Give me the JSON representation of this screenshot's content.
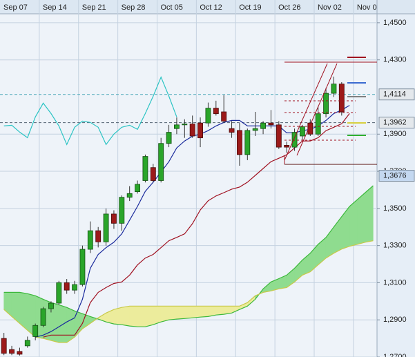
{
  "chart_data": {
    "type": "candlestick",
    "categories": [
      "Sep 07",
      null,
      null,
      null,
      null,
      "Sep 14",
      null,
      null,
      null,
      null,
      "Sep 21",
      null,
      null,
      null,
      null,
      "Sep 28",
      null,
      null,
      null,
      null,
      "Oct 05",
      null,
      null,
      null,
      null,
      "Oct 12",
      null,
      null,
      null,
      null,
      "Oct 19",
      null,
      null,
      null,
      null,
      "Oct 26",
      null,
      null,
      null,
      null,
      "Nov 02",
      null,
      null,
      null,
      null,
      "Nov 0",
      null,
      null
    ],
    "open": [
      1.28,
      1.274,
      1.273,
      1.276,
      1.281,
      1.287,
      1.296,
      1.299,
      1.31,
      1.306,
      1.309,
      1.328,
      1.338,
      1.332,
      1.347,
      1.342,
      1.356,
      1.359,
      1.365,
      1.372,
      1.365,
      1.385,
      1.393,
      1.395,
      1.3955,
      1.396,
      1.396,
      1.404,
      1.402,
      1.393,
      1.392,
      1.379,
      1.392,
      1.393,
      1.396,
      1.395,
      1.384,
      1.383,
      1.389,
      1.396,
      1.39,
      1.401,
      1.412,
      1.417,
      null,
      null,
      null,
      null
    ],
    "high": [
      1.283,
      1.276,
      1.275,
      1.281,
      1.288,
      1.297,
      1.3,
      1.311,
      1.312,
      1.311,
      1.33,
      1.343,
      1.34,
      1.35,
      1.349,
      1.357,
      1.362,
      1.365,
      1.379,
      1.374,
      1.388,
      1.395,
      1.399,
      1.398,
      1.4,
      1.399,
      1.407,
      1.408,
      1.411,
      1.397,
      1.396,
      1.393,
      1.402,
      1.397,
      1.403,
      1.397,
      1.386,
      1.393,
      1.395,
      1.398,
      1.405,
      1.415,
      1.421,
      1.418,
      null,
      null,
      null,
      null
    ],
    "low": [
      1.271,
      1.271,
      1.2708,
      1.275,
      1.279,
      1.286,
      1.294,
      1.298,
      1.304,
      1.304,
      1.308,
      1.326,
      1.329,
      1.33,
      1.339,
      1.338,
      1.354,
      1.358,
      1.364,
      1.364,
      1.364,
      1.383,
      1.39,
      1.388,
      1.388,
      1.383,
      1.394,
      1.4,
      1.396,
      1.388,
      1.373,
      1.376,
      1.389,
      1.39,
      1.393,
      1.382,
      1.38,
      1.381,
      1.387,
      1.389,
      1.389,
      1.399,
      1.41,
      1.4,
      null,
      null,
      null,
      null
    ],
    "close": [
      1.272,
      1.272,
      1.2715,
      1.279,
      1.287,
      1.296,
      1.299,
      1.31,
      1.306,
      1.309,
      1.328,
      1.338,
      1.332,
      1.347,
      1.342,
      1.356,
      1.358,
      1.363,
      1.378,
      1.365,
      1.385,
      1.391,
      1.395,
      1.3955,
      1.389,
      1.388,
      1.404,
      1.401,
      1.397,
      1.391,
      1.379,
      1.392,
      1.393,
      1.396,
      1.395,
      1.383,
      1.383,
      1.391,
      1.394,
      1.39,
      1.401,
      1.412,
      1.417,
      1.402,
      null,
      null,
      null,
      null
    ],
    "up_color": "#2aa52a",
    "down_color": "#9c1a1a",
    "ylim": [
      1.27,
      1.4548
    ],
    "yticks": [
      {
        "value": 1.45,
        "label": "1,4500"
      },
      {
        "value": 1.43,
        "label": "1,4300"
      },
      {
        "value": 1.39,
        "label": "1,3900"
      },
      {
        "value": 1.37,
        "label": "1,3700"
      },
      {
        "value": 1.35,
        "label": "1,3500"
      },
      {
        "value": 1.33,
        "label": "1,3300"
      },
      {
        "value": 1.31,
        "label": "1,3100"
      },
      {
        "value": 1.29,
        "label": "1,2900"
      },
      {
        "value": 1.27,
        "label": "1,2700"
      }
    ],
    "grid": true,
    "cloud": {
      "span_a": {
        "color": "#3cb83c",
        "values": [
          1.3048,
          1.3048,
          1.3048,
          1.3041,
          1.303,
          1.3011,
          1.2993,
          1.2981,
          1.2967,
          1.2948,
          1.2933,
          1.2918,
          1.2904,
          1.2889,
          1.2878,
          1.2874,
          1.2867,
          1.2863,
          1.2863,
          1.2874,
          1.2889,
          1.29,
          1.2904,
          1.2907,
          1.2911,
          1.2915,
          1.2918,
          1.2926,
          1.293,
          1.2937,
          1.2956,
          1.2974,
          1.3011,
          1.3067,
          1.3104,
          1.3122,
          1.3141,
          1.3178,
          1.3222,
          1.3259,
          1.3307,
          1.3344,
          1.34,
          1.3456,
          1.3511,
          1.3548,
          1.3585,
          1.3622
        ]
      },
      "span_b": {
        "color": "#c9c94a",
        "values": [
          1.2956,
          1.2918,
          1.2881,
          1.2844,
          1.2807,
          1.28,
          1.2789,
          1.2778,
          1.2778,
          1.2807,
          1.2852,
          1.2881,
          1.2911,
          1.2937,
          1.2956,
          1.2967,
          1.2974,
          1.2974,
          1.2974,
          1.2974,
          1.2974,
          1.2974,
          1.2974,
          1.2974,
          1.2974,
          1.2974,
          1.2974,
          1.2974,
          1.2974,
          1.2974,
          1.2974,
          1.2993,
          1.303,
          1.3048,
          1.3056,
          1.3067,
          1.3074,
          1.3104,
          1.3141,
          1.3159,
          1.3196,
          1.3233,
          1.3259,
          1.3281,
          1.3296,
          1.3307,
          1.3318,
          1.3326
        ]
      },
      "up_color": "#8fdc8f",
      "down_color": "#ecec9c"
    },
    "lines": [
      {
        "color": "#2cc4c4",
        "values": [
          1.3944,
          1.3948,
          1.3911,
          1.3881,
          1.3993,
          1.4067,
          1.4011,
          1.3944,
          1.3844,
          1.3937,
          1.397,
          1.3963,
          1.3937,
          1.3844,
          1.39,
          1.3937,
          1.3948,
          1.3926,
          1.4011,
          1.4104,
          1.4207,
          1.4104,
          1.3993,
          null,
          null,
          null,
          null,
          null,
          null,
          null,
          null,
          null,
          null,
          null,
          null,
          null,
          null,
          null,
          null,
          null,
          null,
          null,
          null,
          null,
          null,
          null,
          null,
          null
        ]
      },
      {
        "color": "#a01020",
        "values": [
          null,
          null,
          null,
          null,
          null,
          1.2807,
          1.2818,
          1.2818,
          1.2818,
          1.2818,
          1.2881,
          1.2993,
          1.3048,
          1.3074,
          1.3096,
          1.3104,
          1.3141,
          1.3196,
          1.3233,
          1.3252,
          1.3289,
          1.3326,
          1.3344,
          1.3363,
          1.3418,
          1.3492,
          1.3541,
          1.3567,
          1.3585,
          1.3604,
          1.3615,
          1.3641,
          1.3678,
          1.3715,
          1.3752,
          1.377,
          1.3789,
          1.3826,
          1.3863,
          1.3863,
          1.3881,
          1.3919,
          1.3937,
          1.3956,
          1.4011,
          null,
          null,
          null
        ]
      },
      {
        "color": "#1a2a9c",
        "values": [
          null,
          null,
          null,
          null,
          1.2807,
          1.2818,
          1.2837,
          1.2863,
          1.2889,
          1.2911,
          1.3011,
          1.3178,
          1.3252,
          1.3289,
          1.3318,
          1.3363,
          1.3437,
          1.3511,
          1.3592,
          1.3641,
          1.3696,
          1.3752,
          1.3826,
          1.3863,
          1.3889,
          1.39,
          1.3919,
          1.3944,
          1.3963,
          1.3974,
          1.3974,
          1.3944,
          1.3944,
          1.3944,
          1.3944,
          1.3944,
          1.3907,
          1.3907,
          1.3919,
          1.3926,
          1.3944,
          1.3974,
          1.4011,
          1.403,
          1.4055,
          null,
          null,
          null
        ]
      }
    ],
    "levels": [
      {
        "value": 1.4114,
        "label": "1,4114",
        "color": "#e4e8ec",
        "line_color": "#4aa8b8"
      },
      {
        "value": 1.3962,
        "label": "1,3962",
        "color": "#e4e8ec",
        "line_color": "#506070"
      },
      {
        "value": 1.3676,
        "label": "1,3676",
        "color": "#c4d8f0"
      }
    ]
  }
}
